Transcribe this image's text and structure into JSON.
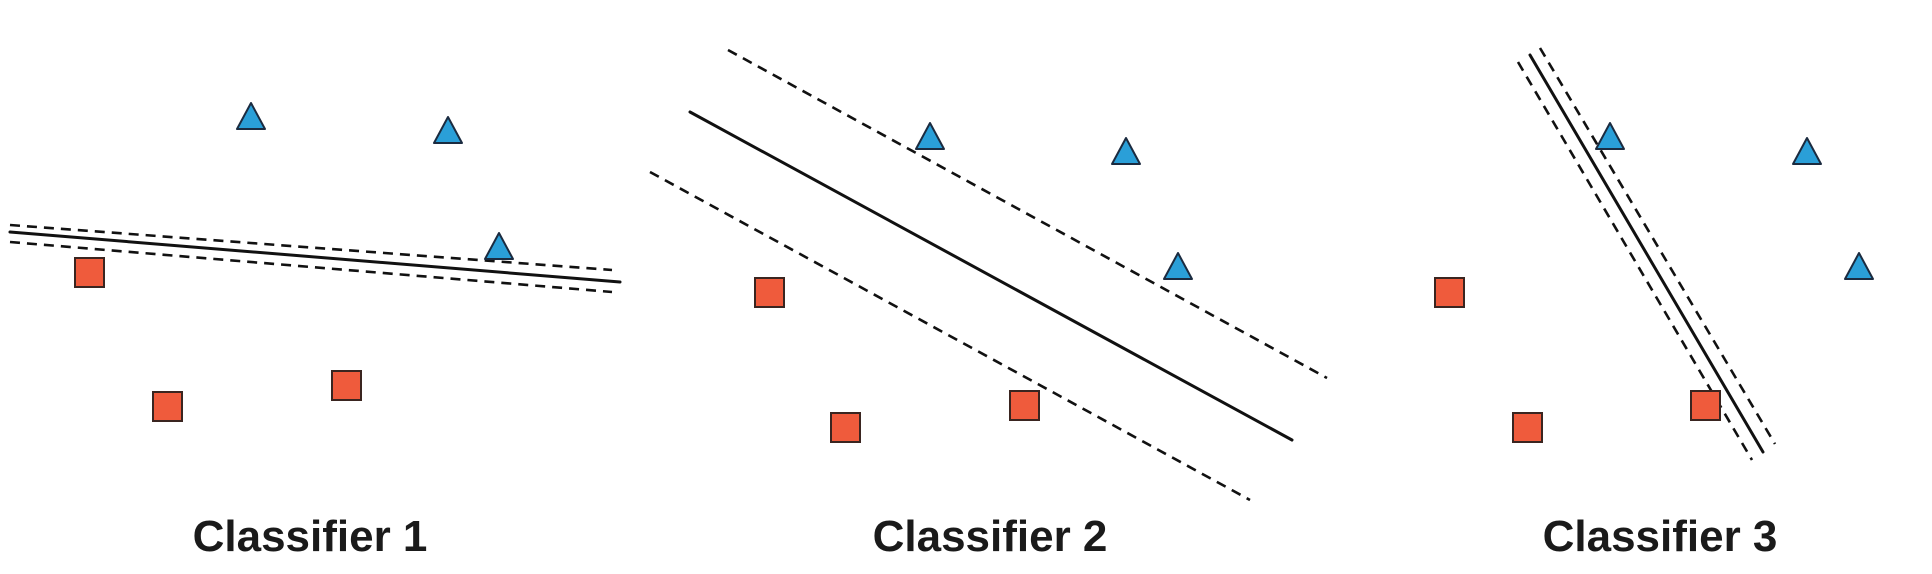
{
  "colors": {
    "triangle": "#2a9fd8",
    "square": "#ef5b3c",
    "line": "#111111"
  },
  "panels": [
    {
      "title": "Classifier 1",
      "triangles": 3,
      "squares": 3
    },
    {
      "title": "Classifier 2",
      "triangles": 3,
      "squares": 3
    },
    {
      "title": "Classifier 3",
      "triangles": 3,
      "squares": 3
    }
  ]
}
